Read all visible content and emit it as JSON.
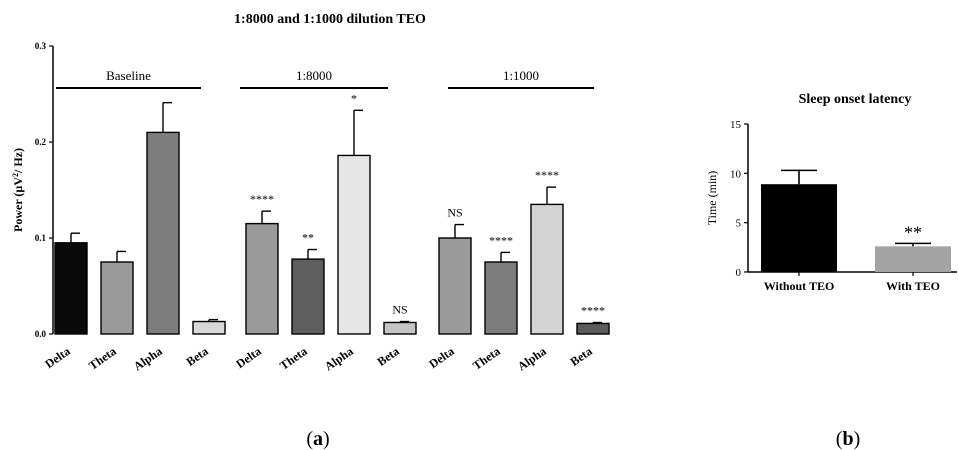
{
  "panel_a_label": "a",
  "panel_b_label": "b",
  "chart_data": [
    {
      "type": "bar",
      "title": "1:8000 and 1:1000 dilution TEO",
      "ylabel_prefix": "Power (µV",
      "ylabel_sup": "2",
      "ylabel_suffix": "/ Hz)",
      "ylim": [
        0,
        0.3
      ],
      "yticks": [
        "0.0",
        "0.1",
        "0.2",
        "0.3"
      ],
      "categories": [
        "Delta",
        "Theta",
        "Alpha",
        "Beta"
      ],
      "groups": [
        {
          "name": "Baseline",
          "values": [
            0.095,
            0.075,
            0.21,
            0.013
          ],
          "errors": [
            0.01,
            0.011,
            0.031,
            0.002
          ],
          "labels": [
            "",
            "",
            "",
            ""
          ],
          "colors": [
            "#0a0a0a",
            "#9a9a9a",
            "#7d7d7d",
            "#d8d8d8"
          ]
        },
        {
          "name": "1:8000",
          "values": [
            0.115,
            0.078,
            0.186,
            0.012
          ],
          "errors": [
            0.013,
            0.01,
            0.047,
            0.001
          ],
          "labels": [
            "****",
            "**",
            "*",
            "NS"
          ],
          "colors": [
            "#9a9a9a",
            "#5e5e5e",
            "#e6e6e6",
            "#c4c4c4"
          ]
        },
        {
          "name": "1:1000",
          "values": [
            0.1,
            0.075,
            0.135,
            0.011
          ],
          "errors": [
            0.014,
            0.01,
            0.018,
            0.001
          ],
          "labels": [
            "NS",
            "****",
            "****",
            "****"
          ],
          "colors": [
            "#9a9a9a",
            "#7d7d7d",
            "#d4d4d4",
            "#5a5a5a"
          ]
        }
      ]
    },
    {
      "type": "bar",
      "title": "Sleep onset latency",
      "ylabel": "Time (min)",
      "ylim": [
        0,
        15
      ],
      "yticks": [
        "0",
        "5",
        "10",
        "15"
      ],
      "categories": [
        "Without TEO",
        "With TEO"
      ],
      "values": [
        8.9,
        2.6
      ],
      "errors": [
        1.4,
        0.3
      ],
      "labels": [
        "",
        "**"
      ],
      "colors": [
        "#000000",
        "#a3a3a3"
      ]
    }
  ]
}
